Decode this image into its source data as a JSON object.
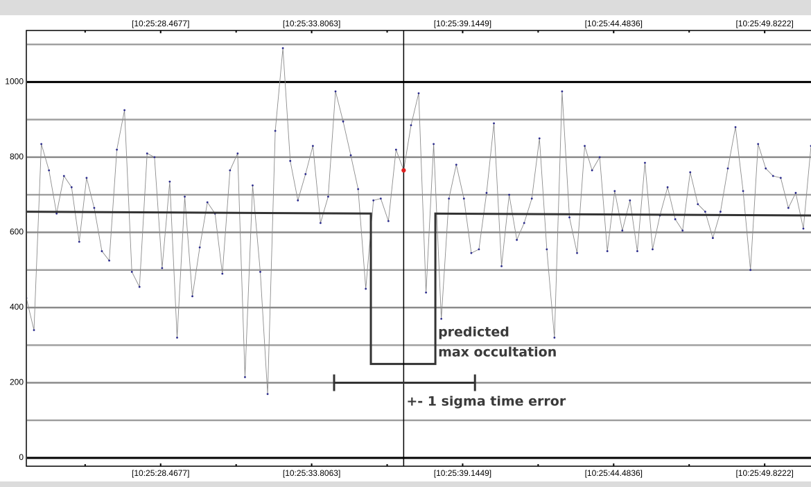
{
  "chart_data": {
    "type": "line",
    "x": [
      23.72,
      23.99,
      24.25,
      24.52,
      24.79,
      25.05,
      25.32,
      25.59,
      25.85,
      26.12,
      26.39,
      26.65,
      26.92,
      27.19,
      27.45,
      27.72,
      27.99,
      28.25,
      28.52,
      28.79,
      29.05,
      29.32,
      29.59,
      29.85,
      30.12,
      30.39,
      30.65,
      30.92,
      31.19,
      31.45,
      31.72,
      31.99,
      32.25,
      32.52,
      32.79,
      33.05,
      33.32,
      33.59,
      33.85,
      34.12,
      34.39,
      34.65,
      34.92,
      35.19,
      35.45,
      35.72,
      35.99,
      36.25,
      36.52,
      36.79,
      37.06,
      37.32,
      37.59,
      37.85,
      38.12,
      38.39,
      38.66,
      38.92,
      39.19,
      39.45,
      39.72,
      39.99,
      40.25,
      40.52,
      40.79,
      41.06,
      41.32,
      41.59,
      41.86,
      42.12,
      42.39,
      42.66,
      42.92,
      43.19,
      43.46,
      43.72,
      43.99,
      44.26,
      44.52,
      44.79,
      45.06,
      45.32,
      45.59,
      45.86,
      46.12,
      46.39,
      46.66,
      46.92,
      47.19,
      47.46,
      47.72,
      47.99,
      48.26,
      48.52,
      48.79,
      49.06,
      49.32,
      49.59,
      49.86,
      50.12,
      50.39,
      50.66,
      50.92,
      51.19,
      51.46
    ],
    "series": [
      {
        "color": "#8c8c8c",
        "marker_color": "#2b2b8c",
        "values": [
          425,
          340,
          835,
          765,
          650,
          750,
          720,
          575,
          745,
          665,
          550,
          525,
          820,
          925,
          495,
          455,
          810,
          800,
          505,
          735,
          320,
          695,
          430,
          560,
          680,
          650,
          490,
          765,
          810,
          215,
          725,
          495,
          170,
          870,
          1090,
          790,
          685,
          755,
          830,
          625,
          695,
          975,
          895,
          805,
          715,
          450,
          685,
          690,
          630,
          820,
          765,
          885,
          970,
          440,
          835,
          370,
          690,
          780,
          690,
          545,
          555,
          705,
          890,
          510,
          700,
          580,
          625,
          690,
          850,
          555,
          320,
          975,
          640,
          545,
          830,
          765,
          800,
          550,
          710,
          605,
          685,
          550,
          785,
          555,
          645,
          720,
          635,
          605,
          760,
          675,
          655,
          585,
          655,
          770,
          880,
          710,
          500,
          835,
          770,
          750,
          745,
          665,
          705,
          610,
          830
        ]
      }
    ],
    "highlight_index": 50,
    "highlight_color": "#e02020",
    "model": {
      "color": "#333333",
      "x": [
        23.72,
        35.9,
        35.9,
        38.18,
        38.18,
        51.46
      ],
      "values": [
        655,
        650,
        250,
        250,
        650,
        645
      ]
    },
    "error_bar": {
      "color": "#333333",
      "x": [
        34.6,
        39.58
      ],
      "y": 200
    },
    "annotations": [
      "predicted",
      "max occultation",
      "+- 1 sigma time error"
    ],
    "xlim": [
      23.72,
      51.46
    ],
    "ylim": [
      -22,
      1137
    ],
    "xticks": [
      {
        "value": 28.4677,
        "label": "[10:25:28.4677]"
      },
      {
        "value": 33.8063,
        "label": "[10:25:33.8063]"
      },
      {
        "value": 39.1449,
        "label": "[10:25:39.1449]"
      },
      {
        "value": 44.4836,
        "label": "[10:25:44.4836]"
      },
      {
        "value": 49.8222,
        "label": "[10:25:49.8222]"
      }
    ],
    "yticks": [
      0,
      200,
      400,
      600,
      800,
      1000
    ],
    "y_minor_grid": [
      100,
      300,
      500,
      700,
      900,
      1100
    ],
    "grid": true
  }
}
